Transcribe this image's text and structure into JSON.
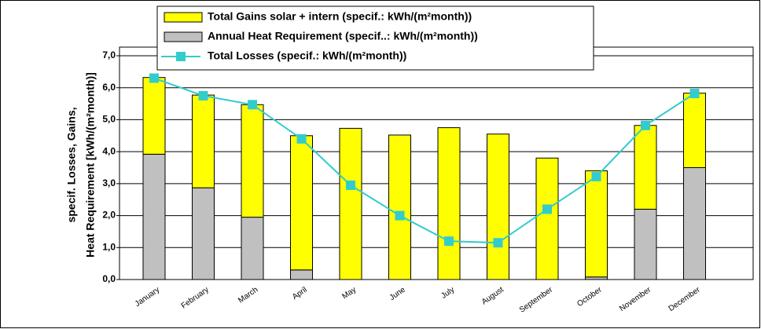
{
  "chart_data": {
    "type": "bar",
    "y_label": [
      "specif. Losses, Gains,",
      "Heat Requirement [kWh/(m²month)]"
    ],
    "categories": [
      "January",
      "February",
      "March",
      "April",
      "May",
      "June",
      "July",
      "August",
      "September",
      "October",
      "November",
      "December"
    ],
    "series": [
      {
        "name": "Annual Heat Requirement (specif..: kWh/(m²month))",
        "color": "#c0c0c0",
        "stack": true,
        "values": [
          3.92,
          2.87,
          1.95,
          0.3,
          0,
          0,
          0,
          0,
          0,
          0.08,
          2.2,
          3.5
        ]
      },
      {
        "name": "Total Gains solar + intern (specif.: kWh/(m²month))",
        "color": "#ffff00",
        "stack": true,
        "values": [
          2.4,
          2.9,
          3.52,
          4.2,
          4.73,
          4.52,
          4.75,
          4.55,
          3.8,
          3.32,
          2.62,
          2.33
        ]
      },
      {
        "name": "Total Losses  (specif.: kWh/(m²month))",
        "color": "#33cccc",
        "line": true,
        "values": [
          6.3,
          5.75,
          5.47,
          4.4,
          2.95,
          2.0,
          1.2,
          1.15,
          2.2,
          3.22,
          4.82,
          5.82
        ]
      }
    ],
    "ylim": [
      0,
      7
    ],
    "yticks": [
      {
        "value": 0,
        "label": "0,0"
      },
      {
        "value": 1,
        "label": "1,0"
      },
      {
        "value": 2,
        "label": "2,0"
      },
      {
        "value": 3,
        "label": "3,0"
      },
      {
        "value": 4,
        "label": "4,0"
      },
      {
        "value": 5,
        "label": "5,0"
      },
      {
        "value": 6,
        "label": "6,0"
      },
      {
        "value": 7,
        "label": "7,0"
      }
    ],
    "grid": true
  }
}
